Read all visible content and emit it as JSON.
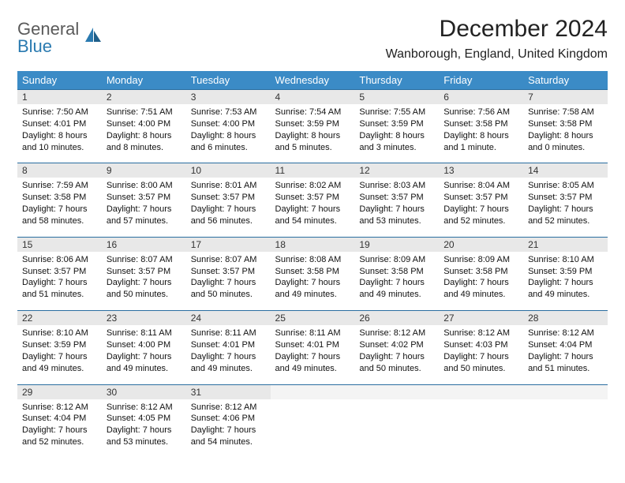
{
  "brand": {
    "top": "General",
    "bottom": "Blue"
  },
  "colors": {
    "header_bg": "#3b8bc6",
    "header_text": "#ffffff",
    "daynum_bg": "#e8e8e8",
    "rule": "#2a6ea0",
    "logo_gray": "#5a5a5a",
    "logo_blue": "#2a7ab0",
    "text": "#111111",
    "bg": "#ffffff"
  },
  "title": "December 2024",
  "location": "Wanborough, England, United Kingdom",
  "weekdays": [
    "Sunday",
    "Monday",
    "Tuesday",
    "Wednesday",
    "Thursday",
    "Friday",
    "Saturday"
  ],
  "days": [
    {
      "n": "1",
      "sr": "7:50 AM",
      "ss": "4:01 PM",
      "dl": "8 hours and 10 minutes."
    },
    {
      "n": "2",
      "sr": "7:51 AM",
      "ss": "4:00 PM",
      "dl": "8 hours and 8 minutes."
    },
    {
      "n": "3",
      "sr": "7:53 AM",
      "ss": "4:00 PM",
      "dl": "8 hours and 6 minutes."
    },
    {
      "n": "4",
      "sr": "7:54 AM",
      "ss": "3:59 PM",
      "dl": "8 hours and 5 minutes."
    },
    {
      "n": "5",
      "sr": "7:55 AM",
      "ss": "3:59 PM",
      "dl": "8 hours and 3 minutes."
    },
    {
      "n": "6",
      "sr": "7:56 AM",
      "ss": "3:58 PM",
      "dl": "8 hours and 1 minute."
    },
    {
      "n": "7",
      "sr": "7:58 AM",
      "ss": "3:58 PM",
      "dl": "8 hours and 0 minutes."
    },
    {
      "n": "8",
      "sr": "7:59 AM",
      "ss": "3:58 PM",
      "dl": "7 hours and 58 minutes."
    },
    {
      "n": "9",
      "sr": "8:00 AM",
      "ss": "3:57 PM",
      "dl": "7 hours and 57 minutes."
    },
    {
      "n": "10",
      "sr": "8:01 AM",
      "ss": "3:57 PM",
      "dl": "7 hours and 56 minutes."
    },
    {
      "n": "11",
      "sr": "8:02 AM",
      "ss": "3:57 PM",
      "dl": "7 hours and 54 minutes."
    },
    {
      "n": "12",
      "sr": "8:03 AM",
      "ss": "3:57 PM",
      "dl": "7 hours and 53 minutes."
    },
    {
      "n": "13",
      "sr": "8:04 AM",
      "ss": "3:57 PM",
      "dl": "7 hours and 52 minutes."
    },
    {
      "n": "14",
      "sr": "8:05 AM",
      "ss": "3:57 PM",
      "dl": "7 hours and 52 minutes."
    },
    {
      "n": "15",
      "sr": "8:06 AM",
      "ss": "3:57 PM",
      "dl": "7 hours and 51 minutes."
    },
    {
      "n": "16",
      "sr": "8:07 AM",
      "ss": "3:57 PM",
      "dl": "7 hours and 50 minutes."
    },
    {
      "n": "17",
      "sr": "8:07 AM",
      "ss": "3:57 PM",
      "dl": "7 hours and 50 minutes."
    },
    {
      "n": "18",
      "sr": "8:08 AM",
      "ss": "3:58 PM",
      "dl": "7 hours and 49 minutes."
    },
    {
      "n": "19",
      "sr": "8:09 AM",
      "ss": "3:58 PM",
      "dl": "7 hours and 49 minutes."
    },
    {
      "n": "20",
      "sr": "8:09 AM",
      "ss": "3:58 PM",
      "dl": "7 hours and 49 minutes."
    },
    {
      "n": "21",
      "sr": "8:10 AM",
      "ss": "3:59 PM",
      "dl": "7 hours and 49 minutes."
    },
    {
      "n": "22",
      "sr": "8:10 AM",
      "ss": "3:59 PM",
      "dl": "7 hours and 49 minutes."
    },
    {
      "n": "23",
      "sr": "8:11 AM",
      "ss": "4:00 PM",
      "dl": "7 hours and 49 minutes."
    },
    {
      "n": "24",
      "sr": "8:11 AM",
      "ss": "4:01 PM",
      "dl": "7 hours and 49 minutes."
    },
    {
      "n": "25",
      "sr": "8:11 AM",
      "ss": "4:01 PM",
      "dl": "7 hours and 49 minutes."
    },
    {
      "n": "26",
      "sr": "8:12 AM",
      "ss": "4:02 PM",
      "dl": "7 hours and 50 minutes."
    },
    {
      "n": "27",
      "sr": "8:12 AM",
      "ss": "4:03 PM",
      "dl": "7 hours and 50 minutes."
    },
    {
      "n": "28",
      "sr": "8:12 AM",
      "ss": "4:04 PM",
      "dl": "7 hours and 51 minutes."
    },
    {
      "n": "29",
      "sr": "8:12 AM",
      "ss": "4:04 PM",
      "dl": "7 hours and 52 minutes."
    },
    {
      "n": "30",
      "sr": "8:12 AM",
      "ss": "4:05 PM",
      "dl": "7 hours and 53 minutes."
    },
    {
      "n": "31",
      "sr": "8:12 AM",
      "ss": "4:06 PM",
      "dl": "7 hours and 54 minutes."
    }
  ],
  "labels": {
    "sunrise": "Sunrise:",
    "sunset": "Sunset:",
    "daylight": "Daylight:"
  },
  "layout": {
    "start_weekday": 0,
    "trailing_blanks": 4
  }
}
